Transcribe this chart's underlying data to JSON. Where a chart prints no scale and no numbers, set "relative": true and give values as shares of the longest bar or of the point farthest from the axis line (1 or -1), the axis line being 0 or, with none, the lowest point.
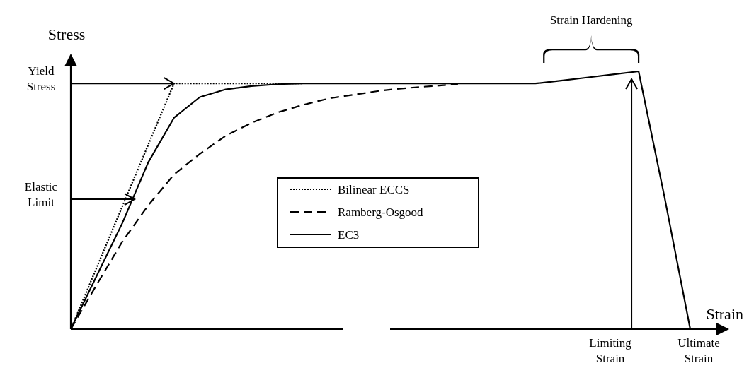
{
  "chart_data": {
    "type": "line",
    "relative": true,
    "xlabel": "Strain",
    "ylabel": "Stress",
    "categories": [
      null,
      null,
      null,
      null,
      null,
      null,
      null,
      null,
      null,
      null,
      null,
      null,
      null,
      null,
      null,
      null,
      null,
      null,
      null,
      null,
      null,
      null,
      null,
      null,
      null
    ],
    "tick_labels": false,
    "legend": "center",
    "series": [
      {
        "name": "Bilinear ECCS",
        "color": "#000000",
        "line_style": "dotted",
        "values": [
          0,
          0.238,
          0.477,
          0.715,
          0.953,
          0.953,
          0.953,
          0.953,
          0.953,
          0.953,
          null,
          null,
          null,
          null,
          null,
          null,
          null,
          null,
          null,
          null,
          null,
          null,
          null,
          null,
          null
        ]
      },
      {
        "name": "Ramberg-Osgood",
        "color": "#000000",
        "line_style": "dashed",
        "values": [
          0,
          0.172,
          0.34,
          0.48,
          0.6,
          0.68,
          0.75,
          0.8,
          0.84,
          0.87,
          0.895,
          0.91,
          0.925,
          0.935,
          0.943,
          0.95,
          null,
          null,
          null,
          null,
          null,
          null,
          null,
          null,
          null
        ]
      },
      {
        "name": "EC3",
        "color": "#000000",
        "line_style": "solid",
        "values": [
          0,
          0.206,
          0.412,
          0.647,
          0.82,
          0.9,
          0.93,
          0.943,
          0.95,
          0.953,
          0.953,
          0.953,
          0.953,
          0.953,
          0.953,
          0.953,
          0.953,
          0.953,
          0.953,
          0.964,
          0.976,
          0.988,
          1,
          0.514,
          0
        ]
      }
    ],
    "annotations": [
      "Yield Stress",
      "Elastic Limit",
      "Limiting Strain",
      "Ultimate Strain",
      "Strain Hardening"
    ]
  }
}
